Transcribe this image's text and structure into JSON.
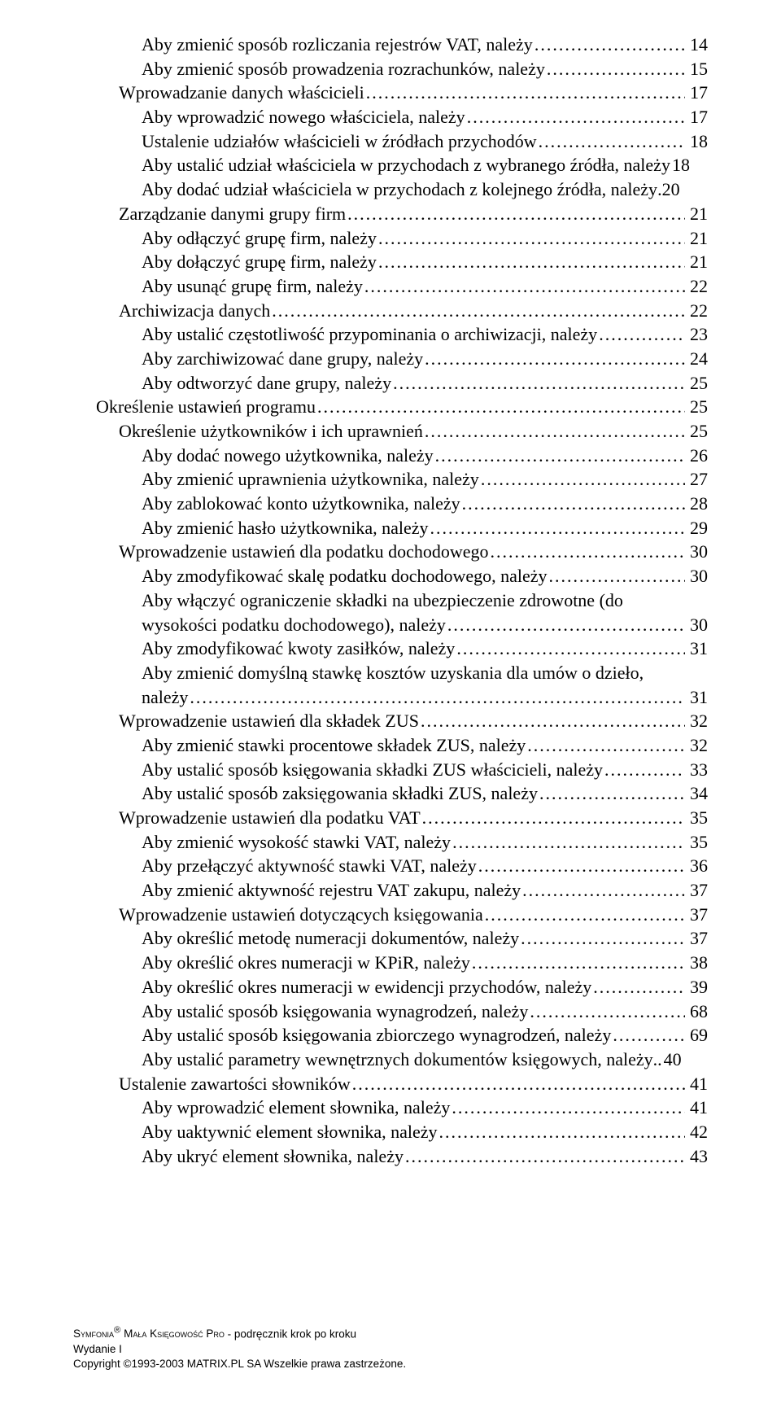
{
  "toc": [
    {
      "indent": 3,
      "label": "Aby zmienić sposób rozliczania rejestrów VAT, należy",
      "page": 14
    },
    {
      "indent": 3,
      "label": "Aby zmienić sposób prowadzenia rozrachunków, należy",
      "page": 15
    },
    {
      "indent": 2,
      "label": "Wprowadzanie danych właścicieli",
      "page": 17
    },
    {
      "indent": 3,
      "label": "Aby wprowadzić nowego właściciela, należy",
      "page": 17
    },
    {
      "indent": 3,
      "label": "Ustalenie udziałów właścicieli w źródłach przychodów",
      "page": 18
    },
    {
      "indent": 3,
      "label": "Aby ustalić udział właściciela w przychodach z wybranego źródła, należy",
      "page": 18,
      "noleader": true
    },
    {
      "indent": 3,
      "label": "Aby dodać udział właściciela w przychodach z kolejnego źródła, należy",
      "page": 20,
      "sep": "."
    },
    {
      "indent": 2,
      "label": "Zarządzanie danymi grupy firm",
      "page": 21
    },
    {
      "indent": 3,
      "label": "Aby odłączyć grupę firm, należy",
      "page": 21
    },
    {
      "indent": 3,
      "label": "Aby dołączyć grupę firm, należy",
      "page": 21
    },
    {
      "indent": 3,
      "label": "Aby usunąć grupę firm, należy",
      "page": 22
    },
    {
      "indent": 2,
      "label": "Archiwizacja danych",
      "page": 22
    },
    {
      "indent": 3,
      "label": "Aby ustalić częstotliwość przypominania o archiwizacji, należy",
      "page": 23
    },
    {
      "indent": 3,
      "label": "Aby zarchiwizować dane grupy, należy",
      "page": 24
    },
    {
      "indent": 3,
      "label": "Aby odtworzyć dane grupy, należy",
      "page": 25
    },
    {
      "indent": 1,
      "label": "Określenie ustawień programu",
      "page": 25
    },
    {
      "indent": 2,
      "label": "Określenie użytkowników i ich uprawnień",
      "page": 25
    },
    {
      "indent": 3,
      "label": "Aby dodać nowego użytkownika, należy",
      "page": 26
    },
    {
      "indent": 3,
      "label": "Aby zmienić uprawnienia użytkownika, należy",
      "page": 27
    },
    {
      "indent": 3,
      "label": "Aby zablokować konto użytkownika, należy",
      "page": 28
    },
    {
      "indent": 3,
      "label": "Aby zmienić hasło użytkownika, należy",
      "page": 29
    },
    {
      "indent": 2,
      "label": "Wprowadzenie ustawień dla podatku dochodowego",
      "page": 30
    },
    {
      "indent": 3,
      "label": "Aby zmodyfikować skalę podatku dochodowego, należy",
      "page": 30
    },
    {
      "indent": 3,
      "wrap": [
        "Aby włączyć ograniczenie składki na ubezpieczenie zdrowotne (do",
        "wysokości podatku dochodowego), należy"
      ],
      "page": 30
    },
    {
      "indent": 3,
      "label": "Aby zmodyfikować kwoty zasiłków, należy",
      "page": 31
    },
    {
      "indent": 3,
      "wrap": [
        "Aby zmienić domyślną stawkę kosztów uzyskania dla umów o dzieło,",
        "należy"
      ],
      "page": 31
    },
    {
      "indent": 2,
      "label": "Wprowadzenie ustawień dla składek ZUS",
      "page": 32
    },
    {
      "indent": 3,
      "label": "Aby zmienić stawki procentowe składek ZUS, należy",
      "page": 32
    },
    {
      "indent": 3,
      "label": "Aby ustalić sposób księgowania składki ZUS właścicieli, należy",
      "page": 33
    },
    {
      "indent": 3,
      "label": "Aby ustalić sposób zaksięgowania składki ZUS, należy",
      "page": 34
    },
    {
      "indent": 2,
      "label": "Wprowadzenie ustawień dla podatku VAT",
      "page": 35
    },
    {
      "indent": 3,
      "label": "Aby zmienić wysokość stawki VAT, należy",
      "page": 35
    },
    {
      "indent": 3,
      "label": "Aby przełączyć aktywność stawki VAT, należy",
      "page": 36
    },
    {
      "indent": 3,
      "label": "Aby zmienić aktywność rejestru VAT zakupu, należy",
      "page": 37
    },
    {
      "indent": 2,
      "label": "Wprowadzenie ustawień dotyczących księgowania",
      "page": 37
    },
    {
      "indent": 3,
      "label": "Aby określić metodę numeracji dokumentów, należy",
      "page": 37
    },
    {
      "indent": 3,
      "label": "Aby określić okres numeracji w KPiR, należy",
      "page": 38
    },
    {
      "indent": 3,
      "label": "Aby określić okres numeracji w ewidencji przychodów, należy",
      "page": 39
    },
    {
      "indent": 3,
      "label": "Aby ustalić sposób księgowania wynagrodzeń, należy",
      "page": 68
    },
    {
      "indent": 3,
      "label": "Aby ustalić sposób księgowania zbiorczego wynagrodzeń, należy",
      "page": 69
    },
    {
      "indent": 3,
      "label": "Aby ustalić parametry wewnętrznych dokumentów księgowych, należy",
      "page": 40,
      "noleader": true,
      "sep": ".."
    },
    {
      "indent": 2,
      "label": "Ustalenie zawartości słowników",
      "page": 41
    },
    {
      "indent": 3,
      "label": "Aby wprowadzić element słownika, należy",
      "page": 41
    },
    {
      "indent": 3,
      "label": "Aby uaktywnić element słownika, należy",
      "page": 42
    },
    {
      "indent": 3,
      "label": "Aby ukryć element słownika, należy",
      "page": 43
    }
  ],
  "footer": {
    "line1_left": "S",
    "line1_sc": "ymfonia",
    "line1_sup": "®",
    "line1_mid_a": " M",
    "line1_sc2": "ała",
    "line1_mid_b": " K",
    "line1_sc3": "sięgowość",
    "line1_mid_c": " P",
    "line1_sc4": "ro",
    "line1_rest": " - podręcznik krok po kroku",
    "line2": "Wydanie I",
    "line3": "Copyright ©1993-2003 MATRIX.PL SA Wszelkie prawa zastrzeżone."
  }
}
